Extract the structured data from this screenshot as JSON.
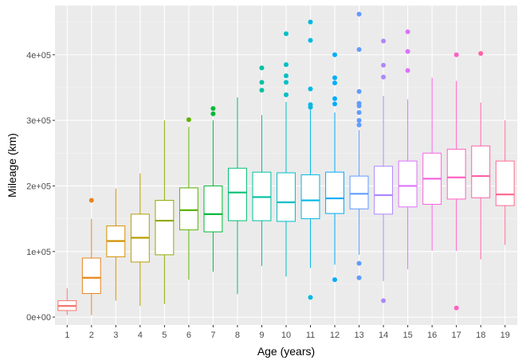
{
  "chart_data": {
    "type": "boxplot",
    "xlabel": "Age (years)",
    "ylabel": "Mileage (km)",
    "ylim": [
      -12000,
      475000
    ],
    "grid": true,
    "legend": "none",
    "y_ticks": [
      {
        "value": 0,
        "label": "0e+00"
      },
      {
        "value": 100000,
        "label": "1e+05"
      },
      {
        "value": 200000,
        "label": "2e+05"
      },
      {
        "value": 300000,
        "label": "3e+05"
      },
      {
        "value": 400000,
        "label": "4e+05"
      }
    ],
    "colors": {
      "panel_background": "#ebebeb",
      "grid_major": "#ffffff",
      "grid_minor": "#f5f5f5"
    },
    "boxes": [
      {
        "label": "1",
        "color": "#F8766D",
        "min": 3000,
        "q1": 10000,
        "median": 17000,
        "q3": 25000,
        "max": 44000,
        "outliers": []
      },
      {
        "label": "2",
        "color": "#E7861B",
        "min": 3000,
        "q1": 36000,
        "median": 60000,
        "q3": 90000,
        "max": 150000,
        "outliers": [
          178000
        ]
      },
      {
        "label": "3",
        "color": "#D39200",
        "min": 25000,
        "q1": 92000,
        "median": 116000,
        "q3": 139000,
        "max": 196000,
        "outliers": []
      },
      {
        "label": "4",
        "color": "#B79F00",
        "min": 17000,
        "q1": 84000,
        "median": 121000,
        "q3": 157000,
        "max": 219000,
        "outliers": []
      },
      {
        "label": "5",
        "color": "#93AA00",
        "min": 20000,
        "q1": 95000,
        "median": 147000,
        "q3": 178000,
        "max": 300000,
        "outliers": []
      },
      {
        "label": "6",
        "color": "#5EB300",
        "min": 57000,
        "q1": 133000,
        "median": 163000,
        "q3": 197000,
        "max": 290000,
        "outliers": [
          301000
        ]
      },
      {
        "label": "7",
        "color": "#00BA38",
        "min": 69000,
        "q1": 130000,
        "median": 157000,
        "q3": 200000,
        "max": 300000,
        "outliers": [
          310000,
          318000
        ]
      },
      {
        "label": "8",
        "color": "#00BF74",
        "min": 35000,
        "q1": 147000,
        "median": 190000,
        "q3": 227000,
        "max": 335000,
        "outliers": []
      },
      {
        "label": "9",
        "color": "#00C19F",
        "min": 78000,
        "q1": 147000,
        "median": 183000,
        "q3": 221000,
        "max": 308000,
        "outliers": [
          346000,
          358000,
          380000
        ]
      },
      {
        "label": "10",
        "color": "#00BFC4",
        "min": 62000,
        "q1": 146000,
        "median": 175000,
        "q3": 220000,
        "max": 328000,
        "outliers": [
          339000,
          358000,
          368000,
          385000,
          432000
        ]
      },
      {
        "label": "11",
        "color": "#00B9E3",
        "min": 75000,
        "q1": 150000,
        "median": 178000,
        "q3": 217000,
        "max": 316000,
        "outliers": [
          30000,
          320000,
          324000,
          348000,
          422000,
          450000
        ]
      },
      {
        "label": "12",
        "color": "#00ADFA",
        "min": 80000,
        "q1": 158000,
        "median": 181000,
        "q3": 221000,
        "max": 312000,
        "outliers": [
          57000,
          325000,
          333000,
          357000,
          365000,
          400000
        ]
      },
      {
        "label": "13",
        "color": "#619CFF",
        "min": 95000,
        "q1": 165000,
        "median": 188000,
        "q3": 215000,
        "max": 285000,
        "outliers": [
          60000,
          82000,
          293000,
          300000,
          312000,
          322000,
          326000,
          344000,
          408000,
          462000
        ]
      },
      {
        "label": "14",
        "color": "#AE87FF",
        "min": 55000,
        "q1": 157000,
        "median": 186000,
        "q3": 230000,
        "max": 337000,
        "outliers": [
          25000,
          366000,
          384000,
          421000
        ]
      },
      {
        "label": "15",
        "color": "#DB72FB",
        "min": 73000,
        "q1": 168000,
        "median": 200000,
        "q3": 238000,
        "max": 332000,
        "outliers": [
          376000,
          405000,
          435000
        ]
      },
      {
        "label": "16",
        "color": "#F564E3",
        "min": 101000,
        "q1": 172000,
        "median": 211000,
        "q3": 250000,
        "max": 365000,
        "outliers": []
      },
      {
        "label": "17",
        "color": "#FF61C3",
        "min": 101000,
        "q1": 180000,
        "median": 213000,
        "q3": 256000,
        "max": 360000,
        "outliers": [
          14000,
          400000
        ]
      },
      {
        "label": "18",
        "color": "#FF62A7",
        "min": 88000,
        "q1": 182000,
        "median": 215000,
        "q3": 261000,
        "max": 327000,
        "outliers": [
          402000
        ]
      },
      {
        "label": "19",
        "color": "#FF6C91",
        "min": 110000,
        "q1": 170000,
        "median": 187000,
        "q3": 238000,
        "max": 300000,
        "outliers": []
      }
    ]
  }
}
